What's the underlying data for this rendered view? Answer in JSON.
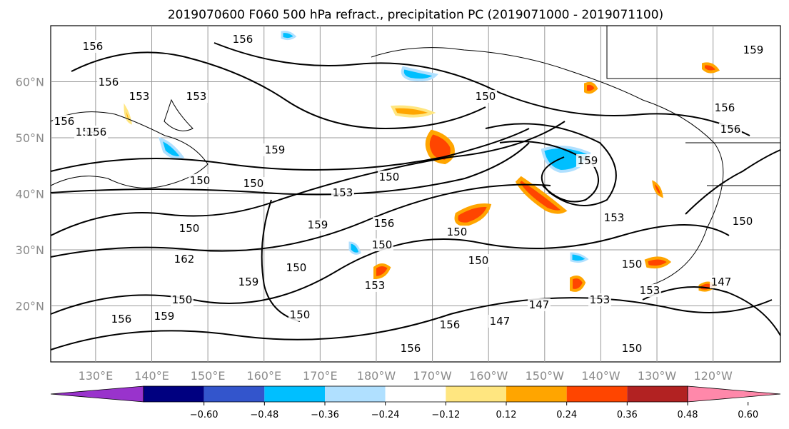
{
  "title": "2019070600 F060 500 hPa refract., precipitation PC (2019071000 - 2019071100)",
  "map": {
    "lat_ticks": [
      {
        "label": "60°N",
        "value": 60
      },
      {
        "label": "50°N",
        "value": 50
      },
      {
        "label": "40°N",
        "value": 40
      },
      {
        "label": "30°N",
        "value": 30
      },
      {
        "label": "20°N",
        "value": 20
      }
    ],
    "lon_ticks": [
      {
        "label": "130°E",
        "value": 130
      },
      {
        "label": "140°E",
        "value": 140
      },
      {
        "label": "150°E",
        "value": 150
      },
      {
        "label": "160°E",
        "value": 160
      },
      {
        "label": "170°E",
        "value": 170
      },
      {
        "label": "180°W",
        "value": 180
      },
      {
        "label": "170°W",
        "value": 190
      },
      {
        "label": "160°W",
        "value": 200
      },
      {
        "label": "150°W",
        "value": 210
      },
      {
        "label": "140°W",
        "value": 220
      },
      {
        "label": "130°W",
        "value": 230
      },
      {
        "label": "120°W",
        "value": 240
      }
    ],
    "lat_range": [
      10,
      70
    ],
    "lon_range": [
      122,
      252
    ],
    "grid": true
  },
  "contour_labels": [
    "156",
    "156",
    "156",
    "159",
    "156",
    "153",
    "153",
    "150",
    "159",
    "156",
    "159",
    "150",
    "150",
    "153",
    "150",
    "150",
    "150",
    "159",
    "150",
    "150",
    "150",
    "153",
    "150",
    "162",
    "159",
    "156",
    "150",
    "147",
    "147",
    "153",
    "150",
    "153",
    "156",
    "150",
    "156",
    "153",
    "156",
    "159",
    "156",
    "156",
    "150",
    "147",
    "159"
  ],
  "colorbar": {
    "colors": [
      "#9933cc",
      "#000080",
      "#3355cc",
      "#00bfff",
      "#b0e0ff",
      "#ffffff",
      "#ffe680",
      "#ffa500",
      "#ff4500",
      "#b22222",
      "#ff88aa"
    ],
    "ticks": [
      "−0.60",
      "−0.48",
      "−0.36",
      "−0.24",
      "−0.12",
      "0.12",
      "0.24",
      "0.36",
      "0.48",
      "0.60"
    ]
  }
}
